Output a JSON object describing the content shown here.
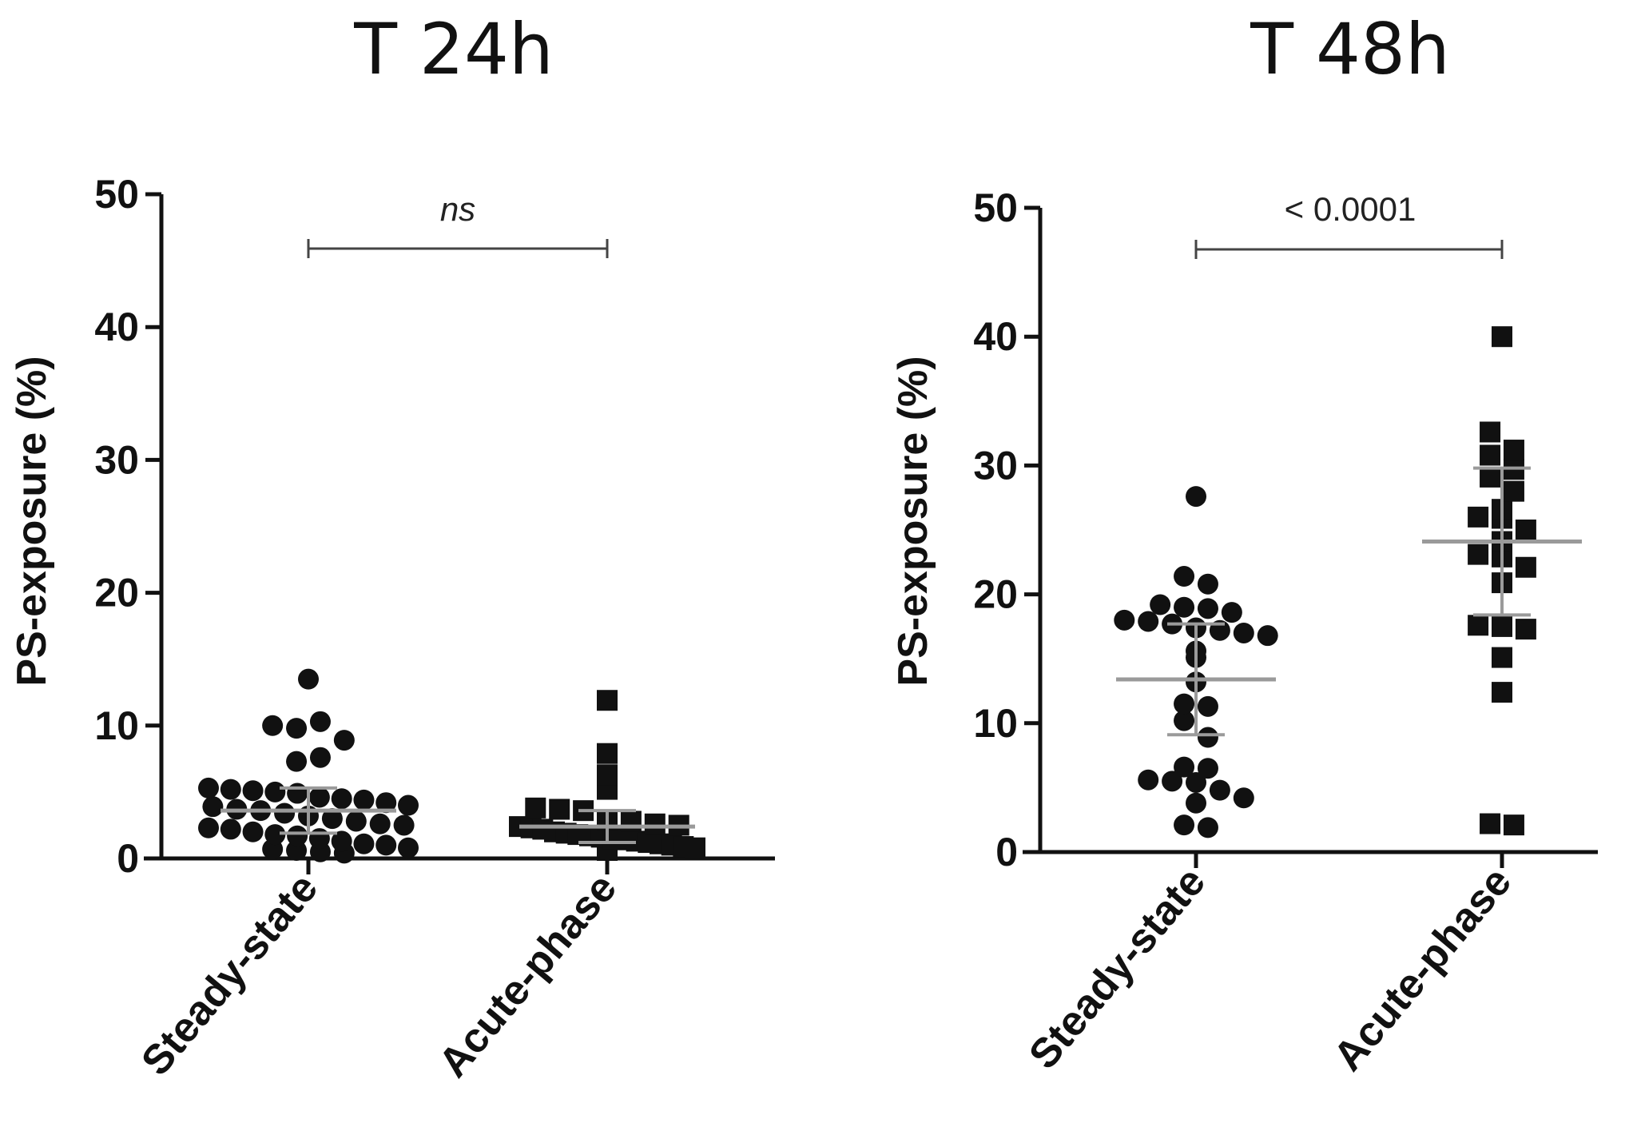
{
  "chart_data": [
    {
      "type": "scatter",
      "title": "T 24h",
      "xlabel": "",
      "ylabel": "PS-exposure (%)",
      "ylim": [
        0,
        50
      ],
      "yticks": [
        0,
        10,
        20,
        30,
        40,
        50
      ],
      "categories": [
        "Steady-state",
        "Acute-phase"
      ],
      "series": [
        {
          "name": "Steady-state",
          "marker": "circle",
          "values": [
            13.5,
            10.0,
            9.8,
            10.3,
            8.9,
            7.3,
            7.6,
            5.3,
            5.2,
            5.1,
            5.0,
            4.9,
            4.6,
            4.5,
            4.4,
            4.2,
            4.0,
            3.9,
            3.7,
            3.6,
            3.4,
            3.2,
            3.0,
            2.8,
            2.6,
            2.5,
            2.3,
            2.2,
            2.0,
            1.8,
            1.7,
            1.5,
            1.3,
            1.1,
            1.0,
            0.8,
            0.7,
            0.6,
            0.5,
            0.4
          ],
          "mean": 3.6,
          "sd": 1.7
        },
        {
          "name": "Acute-phase",
          "marker": "square",
          "values": [
            11.9,
            7.9,
            6.3,
            5.2,
            3.8,
            3.7,
            3.6,
            2.9,
            2.8,
            2.6,
            2.5,
            2.4,
            2.3,
            2.2,
            2.0,
            1.9,
            1.8,
            1.7,
            1.6,
            1.5,
            1.4,
            1.3,
            1.2,
            1.1,
            1.0,
            0.9,
            0.8,
            0.6
          ],
          "mean": 2.4,
          "sd": 1.2
        }
      ],
      "annotations": [
        {
          "text": "ns",
          "between": [
            "Steady-state",
            "Acute-phase"
          ],
          "y": 46.3,
          "italic": true
        }
      ]
    },
    {
      "type": "scatter",
      "title": "T 48h",
      "xlabel": "",
      "ylabel": "PS-exposure (%)",
      "ylim": [
        0,
        50
      ],
      "yticks": [
        0,
        10,
        20,
        30,
        40,
        50
      ],
      "categories": [
        "Steady-state",
        "Acute-phase"
      ],
      "series": [
        {
          "name": "Steady-state",
          "marker": "circle",
          "values": [
            27.6,
            21.4,
            20.8,
            19.2,
            19.0,
            18.9,
            18.6,
            18.0,
            17.9,
            17.7,
            17.4,
            17.2,
            17.0,
            16.8,
            15.6,
            15.1,
            13.2,
            11.5,
            11.3,
            10.2,
            8.9,
            6.6,
            6.5,
            5.6,
            5.5,
            5.4,
            4.8,
            4.2,
            3.8,
            2.1,
            1.9
          ],
          "mean": 13.4,
          "sd": 4.3
        },
        {
          "name": "Acute-phase",
          "marker": "square",
          "values": [
            40.0,
            32.6,
            31.2,
            30.8,
            29.7,
            29.1,
            28.0,
            26.6,
            26.0,
            25.9,
            25.0,
            24.1,
            23.1,
            22.9,
            22.1,
            20.9,
            17.6,
            17.5,
            17.3,
            15.1,
            12.4,
            2.2,
            2.1
          ],
          "mean": 24.1,
          "sd": 5.7
        }
      ],
      "annotations": [
        {
          "text": "< 0.0001",
          "between": [
            "Steady-state",
            "Acute-phase"
          ],
          "y": 46.2,
          "italic": false
        }
      ]
    }
  ]
}
